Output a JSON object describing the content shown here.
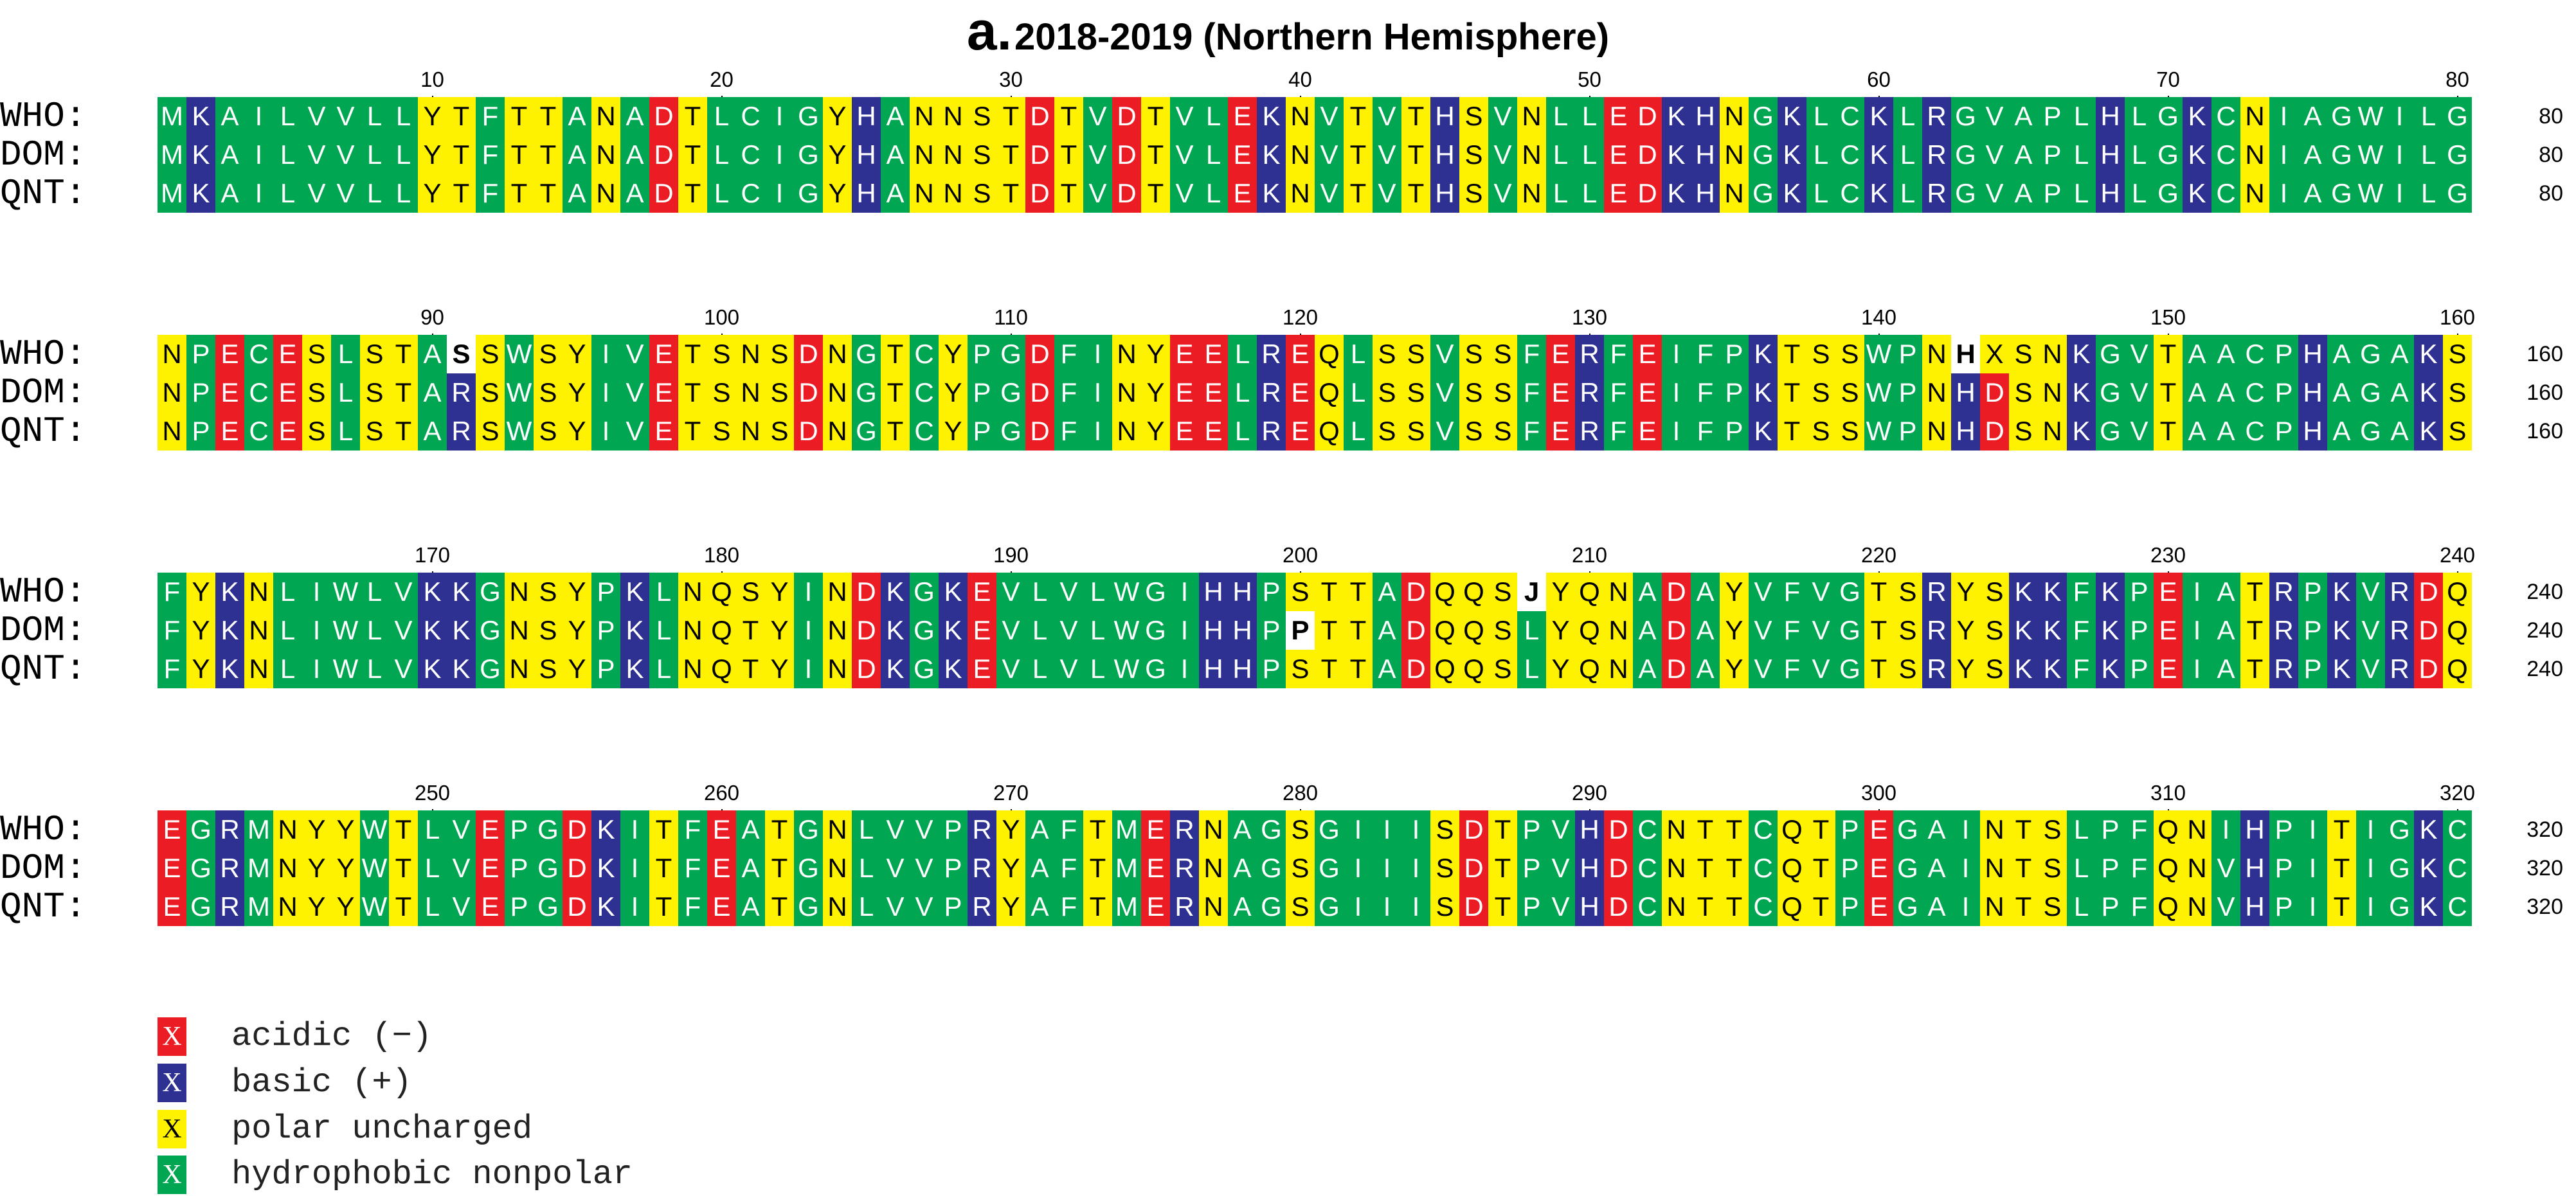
{
  "title": {
    "letter": "a.",
    "text": "2018-2019 (Northern Hemisphere)"
  },
  "colors": {
    "acidic": "#ec1c24",
    "basic": "#2e3192",
    "polar": "#fff200",
    "hydrophobic": "#00a651",
    "highlight": "#ffffff"
  },
  "sequences": [
    {
      "name": "WHO:",
      "seq": "MKAILVVLLYTFTTANADTLCIGYHANNSTDTVDTVLEKNVTVTHSVNLLEDKHNGKLCKLRGVAPLHLGKCNIAGWILGNPECESLSTASSWSYIVETSNSDNGTCYPGDFINYEELREQLSSVSSFERFEIFPKTSSWPNHXSNKGVTAACPHAGAKSFYKNLIWLVKKGNSYPKLNQSYINDKGKEVLVLWGIHHPSTTADQQSJYQNADAYVFVGTSRYSKKFKPEIATRPKVRDQEGRMNYYWTLVEPGDKITFEATGNLVVPRYAFTMERNAGSGIIISDTPVHDCNTTCQTPEGAINTSLPFQNIHPITIGKC"
    },
    {
      "name": "DOM:",
      "seq": "MKAILVVLLYTFTTANADTLCIGYHANNSTDTVDTVLEKNVTVTHSVNLLEDKHNGKLCKLRGVAPLHLGKCNIAGWILGNPECESLSTARSWSYIVETSNSDNGTCYPGDFINYEELREQLSSVSSFERFEIFPKTSSWPNHDSNKGVTAACPHAGAKSFYKNLIWLVKKGNSYPKLNQTYINDKGKEVLVLWGIHHPPTTADQQSLYQNADAYVFVGTSRYSKKFKPEIATRPKVRDQEGRMNYYWTLVEPGDKITFEATGNLVVPRYAFTMERNAGSGIIISDTPVHDCNTTCQTPEGAINTSLPFQNVHPITIGKC"
    },
    {
      "name": "QNT:",
      "seq": "MKAILVVLLYTFTTANADTLCIGYHANNSTDTVDTVLEKNVTVTHSVNLLEDKHNGKLCKLRGVAPLHLGKCNIAGWILGNPECESLSTARSWSYIVETSNSDNGTCYPGDFINYEELREQLSSVSSFERFEIFPKTSSWPNHDSNKGVTAACPHAGAKSFYKNLIWLVKKGNSYPKLNQTYINDKGKEVLVLWGIHHPSTTADQQSLYQNADAYVFVGTSRYSKKFKPEIATRPKVRDQEGRMNYYWTLVEPGDKITFEATGNLVVPRYAFTMERNAGSGIIISDTPVHDCNTTCQTPEGAINTSLPFQNVHPITIGKC"
    }
  ],
  "highlights": [
    {
      "row": 0,
      "pos": 91
    },
    {
      "row": 0,
      "pos": 143
    },
    {
      "row": 0,
      "pos": 208
    },
    {
      "row": 1,
      "pos": 200
    }
  ],
  "blocks": [
    {
      "start": 1,
      "end": 80,
      "ticks": [
        10,
        20,
        30,
        40,
        50,
        60,
        70,
        80
      ],
      "count": "80"
    },
    {
      "start": 81,
      "end": 160,
      "ticks": [
        90,
        100,
        110,
        120,
        130,
        140,
        150,
        160
      ],
      "count": "160"
    },
    {
      "start": 161,
      "end": 240,
      "ticks": [
        170,
        180,
        190,
        200,
        210,
        220,
        230,
        240
      ],
      "count": "240"
    },
    {
      "start": 241,
      "end": 320,
      "ticks": [
        250,
        260,
        270,
        280,
        290,
        300,
        310,
        320
      ],
      "count": "320"
    }
  ],
  "legend": [
    {
      "symbol": "X",
      "label": "acidic (−)",
      "color": "#ec1c24"
    },
    {
      "symbol": "X",
      "label": "basic (+)",
      "color": "#2e3192"
    },
    {
      "symbol": "X",
      "label": "polar uncharged",
      "color": "#fff200"
    },
    {
      "symbol": "X",
      "label": "hydrophobic nonpolar",
      "color": "#00a651"
    }
  ]
}
